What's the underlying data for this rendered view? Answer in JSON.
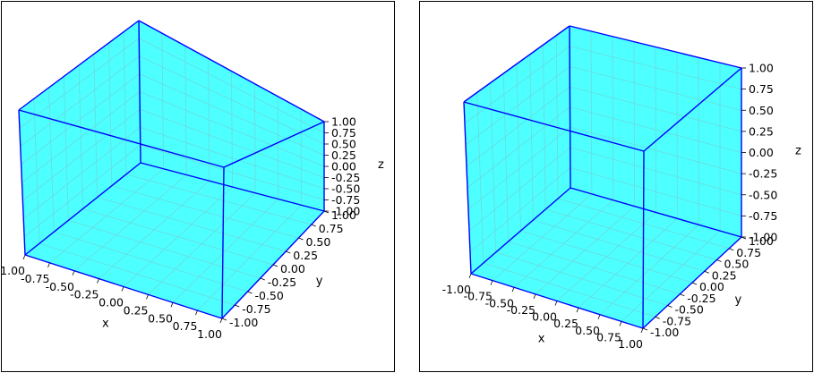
{
  "chart_data": [
    {
      "type": "3d-surface",
      "description_shape": "cube",
      "xlabel": "x",
      "ylabel": "y",
      "zlabel": "z",
      "xlim": [
        -1.0,
        1.0
      ],
      "ylim": [
        -1.0,
        1.0
      ],
      "zlim": [
        -1.0,
        1.0
      ],
      "ticks": [
        "-1.00",
        "-0.75",
        "-0.50",
        "-0.25",
        "0.00",
        "0.25",
        "0.50",
        "0.75",
        "1.00"
      ],
      "face_color": "#00ffff",
      "edge_color": "#0000ff",
      "grid": true
    },
    {
      "type": "3d-surface",
      "description_shape": "cube",
      "xlabel": "x",
      "ylabel": "y",
      "zlabel": "z",
      "xlim": [
        -1.0,
        1.0
      ],
      "ylim": [
        -1.0,
        1.0
      ],
      "zlim": [
        -1.0,
        1.0
      ],
      "ticks": [
        "-1.00",
        "-0.75",
        "-0.50",
        "-0.25",
        "0.00",
        "0.25",
        "0.50",
        "0.75",
        "1.00"
      ],
      "face_color": "#00ffff",
      "edge_color": "#0000ff",
      "grid": true
    }
  ]
}
